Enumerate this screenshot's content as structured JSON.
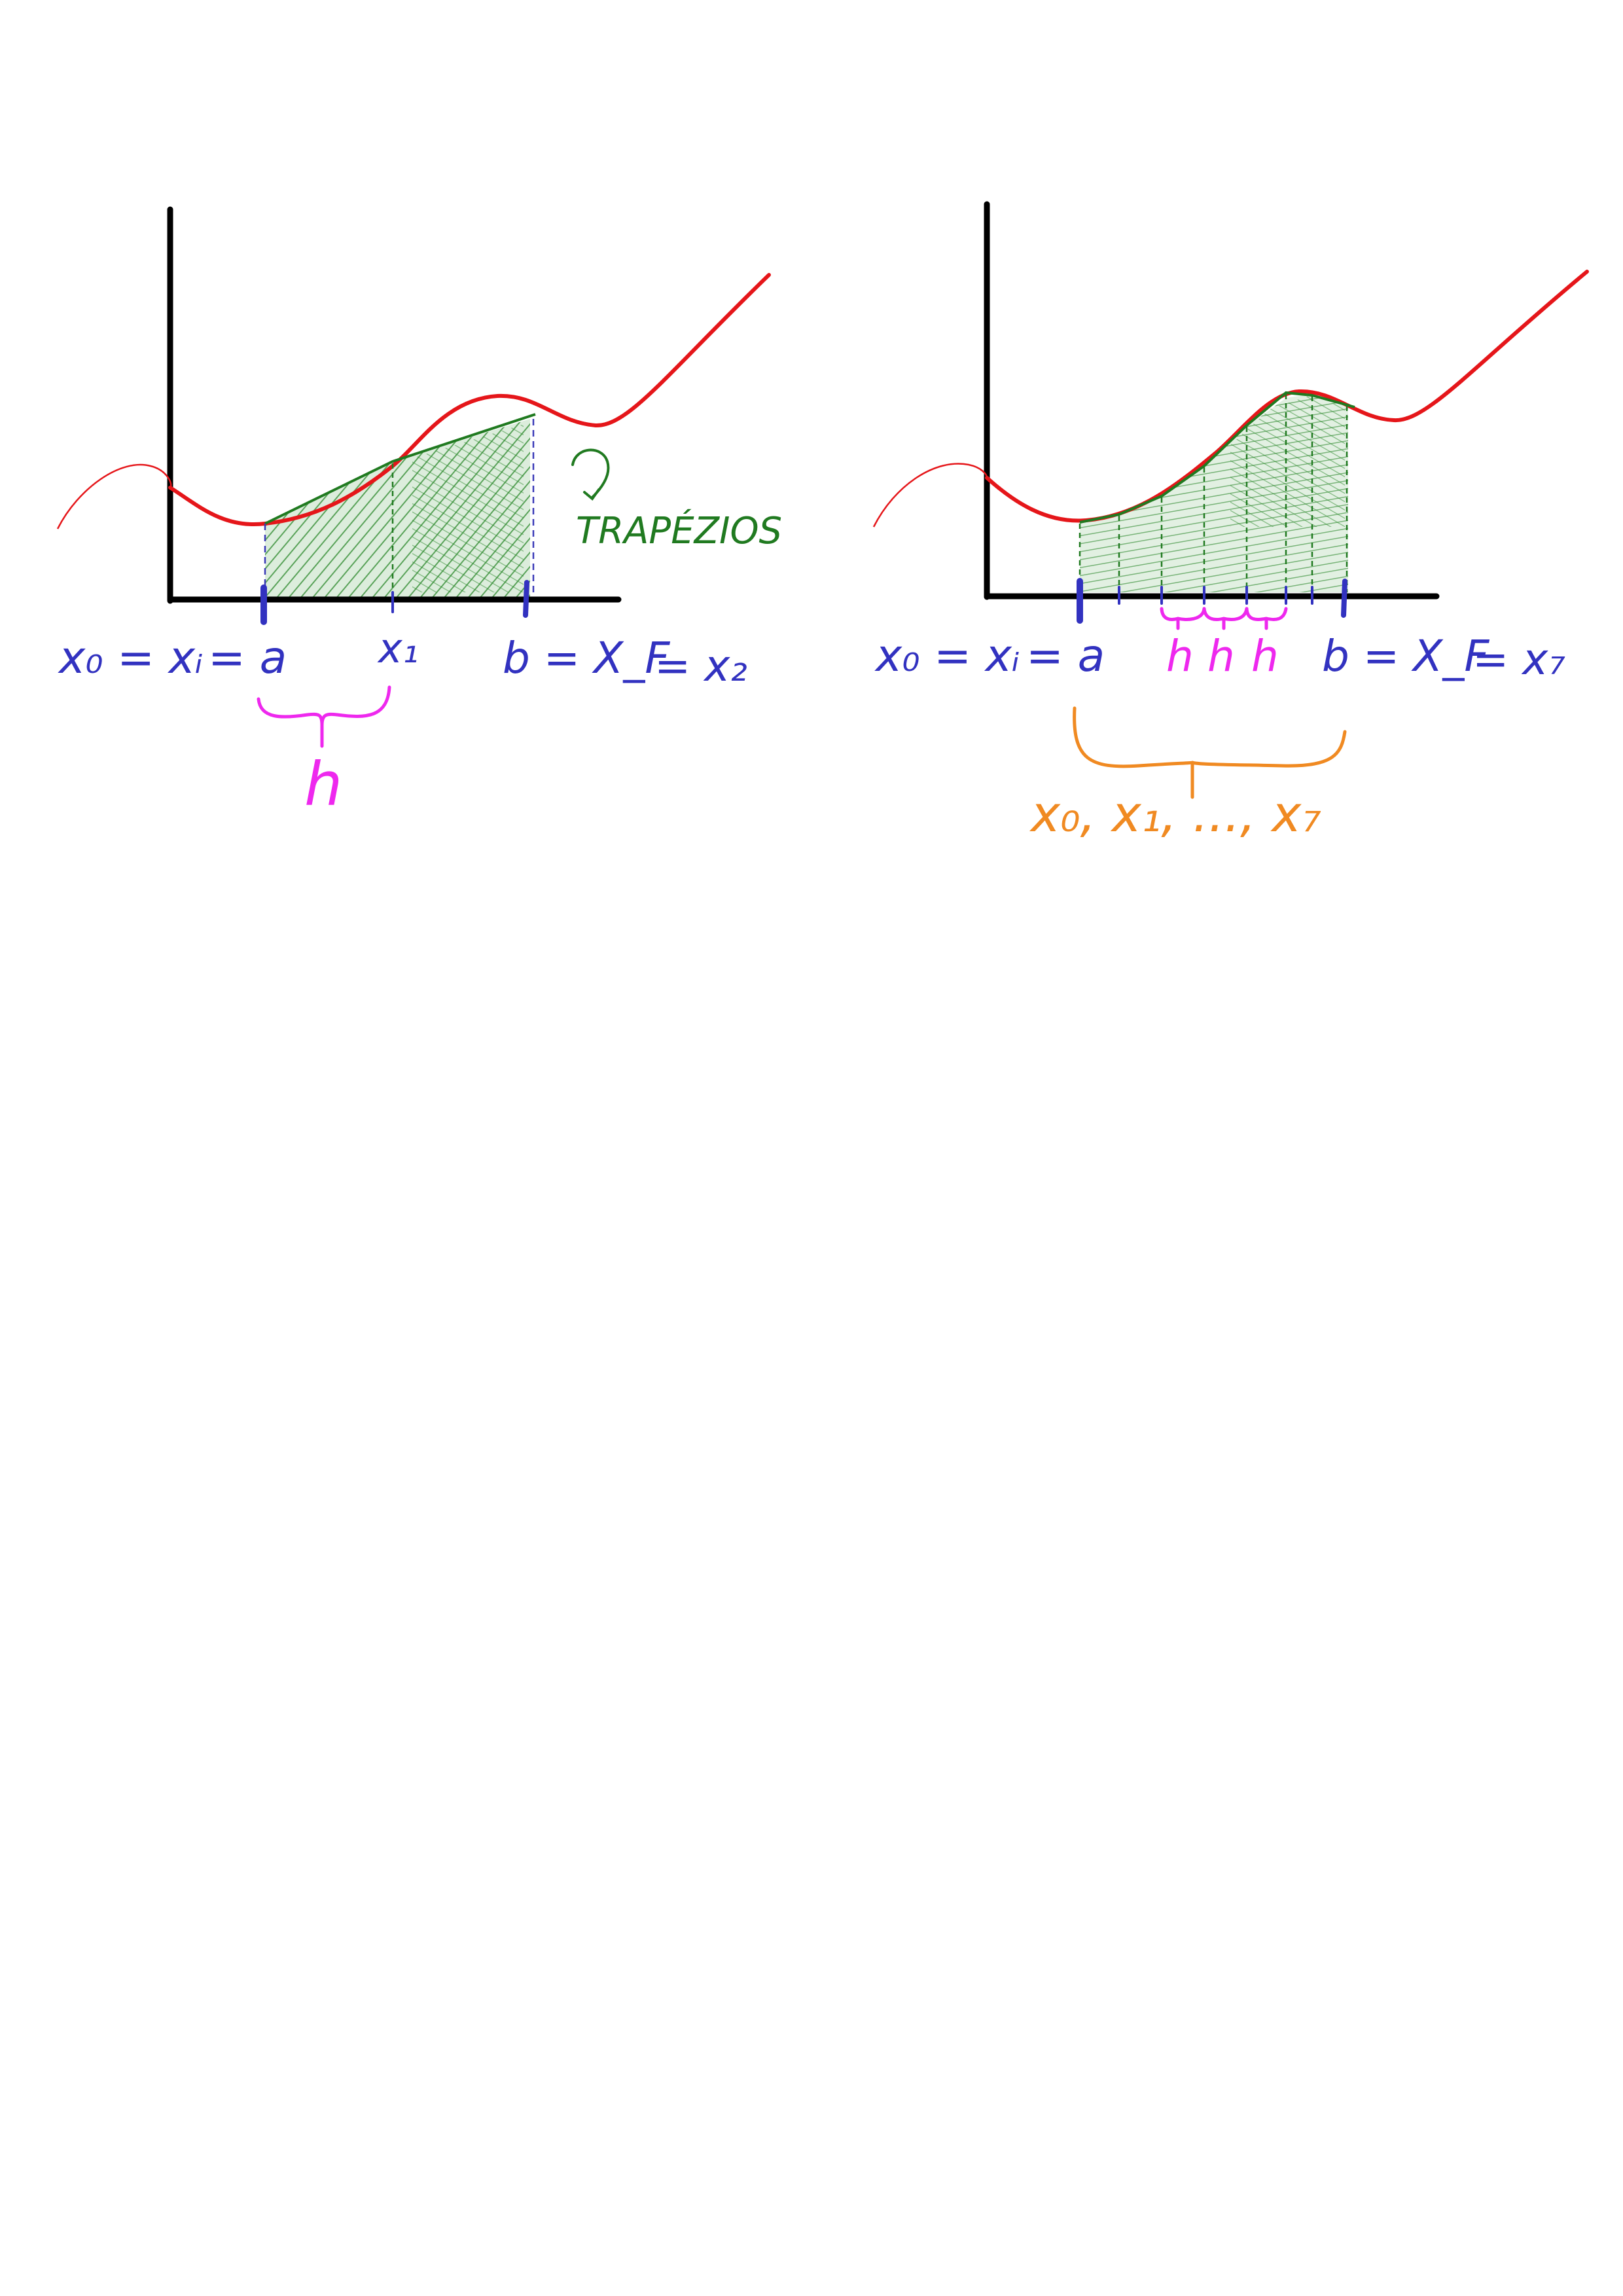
{
  "left_panel": {
    "label_x0_eq_xi": "x₀ = xᵢ",
    "label_eq_a": "= a",
    "label_x1": "x₁",
    "label_b_eq_xf": "b = X_F",
    "label_eq_x2": "= x₂",
    "label_h": "h",
    "label_trapezios": "TRAPÉZIOS"
  },
  "right_panel": {
    "label_x0_eq_xi": "x₀ = xᵢ",
    "label_eq_a": "= a",
    "label_h1": "h",
    "label_h2": "h",
    "label_h3": "h",
    "label_b_eq_xf": "b = X_F",
    "label_eq_x7": "= x₇",
    "label_points": "x₀, x₁, ..., x₇"
  },
  "colors": {
    "axis": "#000000",
    "curve": "#e5161a",
    "fill": "#2e8b2e",
    "labels_blue": "#3232c0",
    "labels_magenta": "#ee28ee",
    "labels_green": "#207a20",
    "labels_orange": "#f08a22"
  }
}
